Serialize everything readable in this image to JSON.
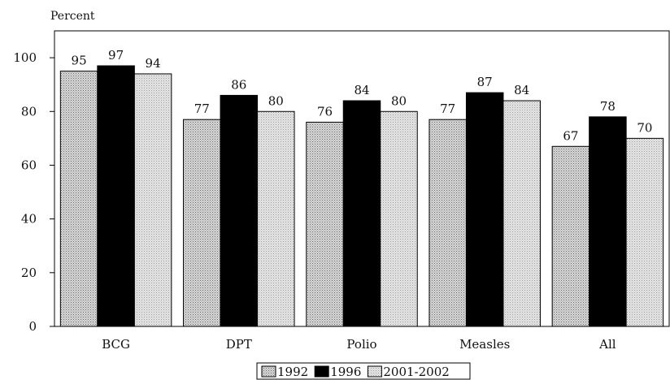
{
  "chart_data": {
    "type": "bar",
    "ylabel": "Percent",
    "ylim": [
      0,
      110
    ],
    "yticks": [
      0,
      20,
      40,
      60,
      80,
      100
    ],
    "categories": [
      "BCG",
      "DPT",
      "Polio",
      "Measles",
      "All"
    ],
    "series": [
      {
        "name": "1992",
        "values": [
          95,
          77,
          76,
          77,
          67
        ],
        "fill": "pattern-dots"
      },
      {
        "name": "1996",
        "values": [
          97,
          86,
          84,
          87,
          78
        ],
        "fill": "#000000"
      },
      {
        "name": "2001-2002",
        "values": [
          94,
          80,
          80,
          84,
          70
        ],
        "fill": "pattern-light"
      }
    ],
    "grid": false,
    "legend": "bottom-center"
  }
}
